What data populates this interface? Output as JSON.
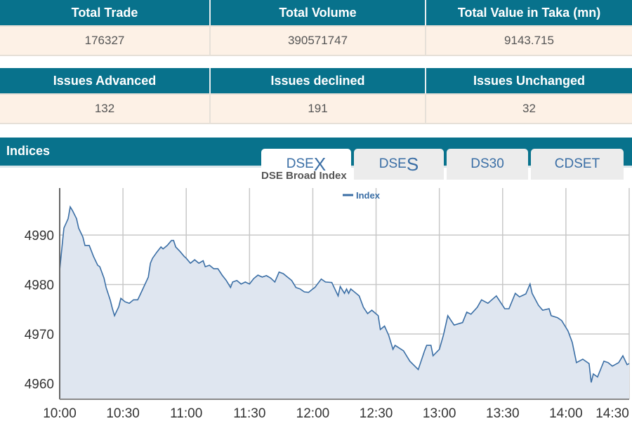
{
  "summary": {
    "headers": [
      "Total Trade",
      "Total Volume",
      "Total Value in Taka (mn)"
    ],
    "values": [
      "176327",
      "390571747",
      "9143.715"
    ]
  },
  "issues": {
    "headers": [
      "Issues Advanced",
      "Issues declined",
      "Issues Unchanged"
    ],
    "values": [
      "132",
      "191",
      "32"
    ]
  },
  "indices": {
    "title": "Indices",
    "tabs": [
      {
        "prefix": "DSE",
        "suffix": "X",
        "active": true
      },
      {
        "prefix": "DSE",
        "suffix": "S",
        "active": false
      },
      {
        "label": "DS30",
        "active": false
      },
      {
        "label": "CDSET",
        "active": false
      }
    ]
  },
  "colors": {
    "header": "#08728c",
    "cell": "#fdf1e6",
    "line": "#3a6ea5",
    "fill": "#dfe6f0"
  },
  "chart_data": {
    "type": "area",
    "title": "DSE Broad Index",
    "legend": "top-center",
    "grid": true,
    "series": [
      {
        "name": "Index",
        "x": [
          "10:00",
          "10:01",
          "10:02",
          "10:04",
          "10:05",
          "10:06",
          "10:08",
          "10:09",
          "10:11",
          "10:12",
          "10:14",
          "10:16",
          "10:18",
          "10:19",
          "10:21",
          "10:22",
          "10:24",
          "10:25",
          "10:26",
          "10:28",
          "10:29",
          "10:31",
          "10:33",
          "10:35",
          "10:37",
          "10:39",
          "10:42",
          "10:43",
          "10:44",
          "10:46",
          "10:48",
          "10:49",
          "10:51",
          "10:53",
          "10:54",
          "10:55",
          "10:57",
          "10:59",
          "11:00",
          "11:02",
          "11:04",
          "11:06",
          "11:08",
          "11:09",
          "11:11",
          "11:13",
          "11:15",
          "11:17",
          "11:19",
          "11:21",
          "11:22",
          "11:24",
          "11:26",
          "11:28",
          "11:30",
          "11:32",
          "11:34",
          "11:36",
          "11:38",
          "11:40",
          "11:42",
          "11:44",
          "11:46",
          "11:48",
          "11:50",
          "11:52",
          "11:54",
          "11:56",
          "11:58",
          "12:00",
          "12:01",
          "12:04",
          "12:06",
          "12:09",
          "12:12",
          "12:13",
          "12:15",
          "12:16",
          "12:17",
          "12:18",
          "12:22",
          "12:24",
          "12:26",
          "12:28",
          "12:31",
          "12:32",
          "12:34",
          "12:36",
          "12:38",
          "12:39",
          "12:43",
          "12:46",
          "12:50",
          "12:53",
          "12:54",
          "12:56",
          "12:57",
          "13:00",
          "13:02",
          "13:04",
          "13:07",
          "13:11",
          "13:13",
          "13:15",
          "13:18",
          "13:20",
          "13:23",
          "13:27",
          "13:31",
          "13:33",
          "13:36",
          "13:38",
          "13:41",
          "13:43",
          "13:44",
          "13:47",
          "13:49",
          "13:52",
          "13:53",
          "13:56",
          "13:58",
          "14:01",
          "14:03",
          "14:05",
          "14:08",
          "14:11",
          "14:12",
          "14:13",
          "14:15",
          "14:18",
          "14:20",
          "14:22",
          "14:25",
          "14:27",
          "14:29",
          "14:30"
        ],
        "values": [
          4982.9,
          4987.2,
          4991.4,
          4993.3,
          4995.7,
          4995.0,
          4993.3,
          4991.4,
          4989.6,
          4987.9,
          4987.9,
          4985.7,
          4983.9,
          4983.6,
          4981.3,
          4979.4,
          4976.8,
          4975.1,
          4973.7,
          4975.5,
          4977.2,
          4976.5,
          4976.2,
          4976.9,
          4976.9,
          4978.7,
          4981.5,
          4984.3,
          4985.3,
          4986.5,
          4987.6,
          4987.2,
          4987.9,
          4988.9,
          4988.9,
          4987.6,
          4986.7,
          4985.7,
          4985.3,
          4984.3,
          4985.0,
          4984.3,
          4984.8,
          4983.6,
          4983.9,
          4983.2,
          4983.2,
          4981.9,
          4980.8,
          4979.4,
          4980.5,
          4980.8,
          4980.1,
          4980.5,
          4980.1,
          4981.2,
          4981.9,
          4981.5,
          4981.8,
          4981.3,
          4980.5,
          4982.5,
          4982.2,
          4981.5,
          4980.8,
          4979.4,
          4979.1,
          4978.5,
          4978.4,
          4979.1,
          4979.4,
          4981.1,
          4980.5,
          4980.4,
          4977.7,
          4979.6,
          4978.2,
          4979.1,
          4978.2,
          4979.1,
          4977.7,
          4975.4,
          4974.1,
          4974.8,
          4973.7,
          4970.9,
          4971.6,
          4969.7,
          4966.9,
          4967.7,
          4966.6,
          4964.5,
          4962.8,
          4966.6,
          4967.7,
          4967.7,
          4965.6,
          4966.9,
          4969.9,
          4973.7,
          4971.8,
          4972.3,
          4974.4,
          4974.0,
          4975.4,
          4976.9,
          4976.2,
          4977.7,
          4975.1,
          4975.1,
          4978.2,
          4977.5,
          4978.1,
          4980.1,
          4978.2,
          4975.8,
          4974.8,
          4975.1,
          4973.7,
          4973.3,
          4972.7,
          4970.6,
          4968.3,
          4964.2,
          4964.9,
          4964.0,
          4960.2,
          4961.9,
          4961.3,
          4964.5,
          4964.2,
          4963.5,
          4964.2,
          4965.6,
          4963.8,
          4964.0
        ]
      }
    ],
    "xticks": [
      "10:00",
      "10:30",
      "11:00",
      "11:30",
      "12:00",
      "12:30",
      "13:00",
      "13:30",
      "14:00",
      "14:30"
    ],
    "yticks": [
      4960,
      4970,
      4980,
      4990
    ],
    "xlim": [
      "10:00",
      "14:30"
    ],
    "ylim": [
      4956.8,
      4999.5
    ]
  }
}
